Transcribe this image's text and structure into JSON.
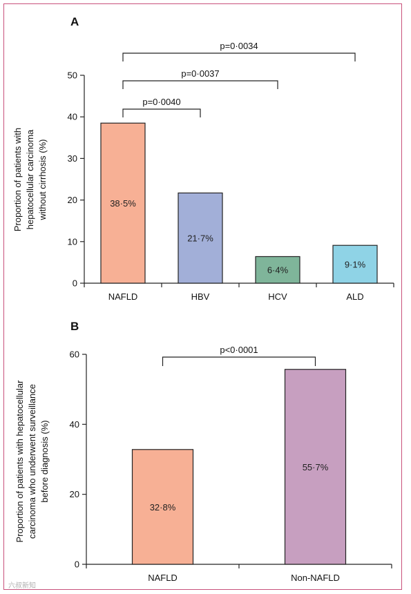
{
  "chart_data": [
    {
      "type": "bar",
      "panel": "A",
      "ylabel_lines": [
        "Proportion of patients with",
        "hepatocellular carcinoma",
        "without cirrhosis (%)"
      ],
      "categories": [
        "NAFLD",
        "HBV",
        "HCV",
        "ALD"
      ],
      "values": [
        38.5,
        21.7,
        6.4,
        9.1
      ],
      "value_labels": [
        "38·5%",
        "21·7%",
        "6·4%",
        "9·1%"
      ],
      "colors": [
        "#f7b095",
        "#a2afd8",
        "#7fb59a",
        "#8fd3e6"
      ],
      "ylim": [
        0,
        50
      ],
      "yticks": [
        0,
        10,
        20,
        30,
        40,
        50
      ],
      "comparisons": [
        {
          "from": 0,
          "to": 1,
          "label": "p=0·0040"
        },
        {
          "from": 0,
          "to": 2,
          "label": "p=0·0037"
        },
        {
          "from": 0,
          "to": 3,
          "label": "p=0·0034"
        }
      ]
    },
    {
      "type": "bar",
      "panel": "B",
      "ylabel_lines": [
        "Proportion of patients with hepatocellular",
        "carcinoma who underwent surveillance",
        "before diagnosis (%)"
      ],
      "categories": [
        "NAFLD",
        "Non-NAFLD"
      ],
      "values": [
        32.8,
        55.7
      ],
      "value_labels": [
        "32·8%",
        "55·7%"
      ],
      "colors": [
        "#f7b095",
        "#c79fc0"
      ],
      "ylim": [
        0,
        60
      ],
      "yticks": [
        0,
        20,
        40,
        60
      ],
      "comparisons": [
        {
          "from": 0,
          "to": 1,
          "label": "p<0·0001"
        }
      ]
    }
  ],
  "watermark": "六叔新知"
}
